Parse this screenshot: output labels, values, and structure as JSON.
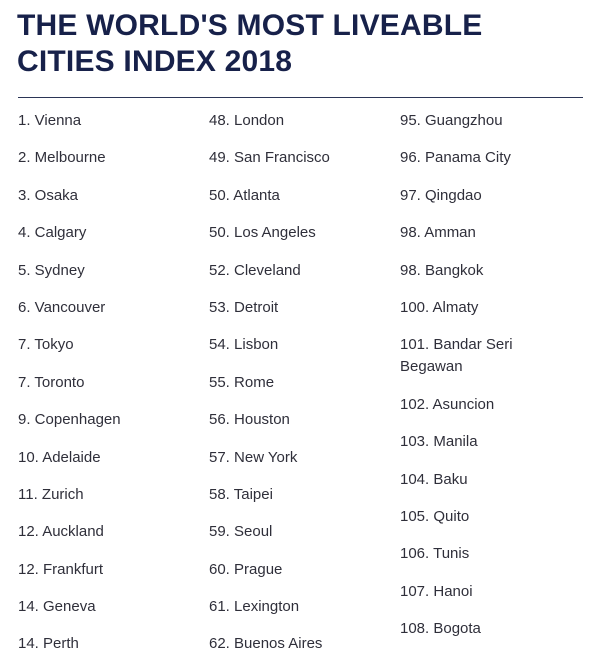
{
  "title": {
    "line1": "THE WORLD'S MOST LIVEABLE",
    "line2": "CITIES INDEX 2018"
  },
  "columns": [
    {
      "items": [
        "1. Vienna",
        "2. Melbourne",
        "3. Osaka",
        "4. Calgary",
        "5. Sydney",
        "6. Vancouver",
        "7. Tokyo",
        "7. Toronto",
        "9. Copenhagen",
        "10. Adelaide",
        "11. Zurich",
        "12. Auckland",
        "12. Frankfurt",
        "14. Geneva",
        "14. Perth"
      ]
    },
    {
      "items": [
        "48. London",
        "49. San Francisco",
        "50. Atlanta",
        "50. Los Angeles",
        "52. Cleveland",
        "53. Detroit",
        "54. Lisbon",
        "55. Rome",
        "56. Houston",
        "57. New York",
        "58. Taipei",
        "59. Seoul",
        "60. Prague",
        "61. Lexington",
        "62. Buenos Aires"
      ]
    },
    {
      "items": [
        "95. Guangzhou",
        "96. Panama City",
        "97. Qingdao",
        "98. Amman",
        "98. Bangkok",
        "100. Almaty",
        "101. Bandar Seri Begawan",
        "102. Asuncion",
        "103. Manila",
        "104. Baku",
        "105. Quito",
        "106. Tunis",
        "107. Hanoi",
        "108. Bogota"
      ]
    }
  ]
}
